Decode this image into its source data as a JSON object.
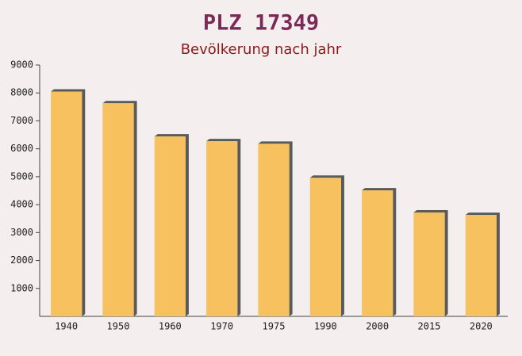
{
  "chart_data": {
    "type": "bar",
    "title": "PLZ 17349",
    "subtitle": "Bevölkerung nach jahr",
    "categories": [
      "1940",
      "1950",
      "1960",
      "1970",
      "1975",
      "1990",
      "2000",
      "2015",
      "2020"
    ],
    "values": [
      8050,
      7630,
      6440,
      6270,
      6180,
      4960,
      4510,
      3720,
      3630
    ],
    "color": "#f6c15e",
    "ylim": [
      0,
      9000
    ],
    "yticks": [
      1000,
      2000,
      3000,
      4000,
      5000,
      6000,
      7000,
      8000,
      9000
    ],
    "grid": false
  }
}
